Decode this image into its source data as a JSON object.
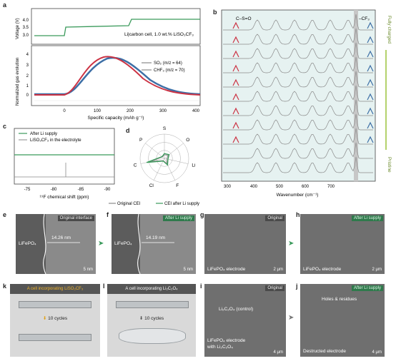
{
  "colors": {
    "green": "#3a9a5b",
    "blue": "#3d6fa6",
    "red": "#cc3344",
    "grey": "#8a8a8a",
    "ftir_fill": "#e6f2f1"
  },
  "panel_letters": {
    "a": "a",
    "b": "b",
    "c": "c",
    "d": "d",
    "e": "e",
    "f": "f",
    "g": "g",
    "h": "h",
    "i": "i",
    "j": "j",
    "k": "k",
    "l": "l"
  },
  "panel_a": {
    "cell_label": "Li|carbon cell, 1.0 wt.% LiSO₃CF₃",
    "ylabel_top": "Voltage (V)",
    "ylabel_bottom": "Normalized gas evolution",
    "xlabel": "Specific capacity (mAh g⁻¹)",
    "legend": [
      "SO₂ (m/z = 64)",
      "CHF₃ (m/z = 70)"
    ],
    "yticks_top": [
      "4.0",
      "3.5",
      "3.0"
    ],
    "yticks_bottom": [
      "4",
      "3",
      "2",
      "1",
      "0"
    ],
    "xticks": [
      "0",
      "100",
      "200",
      "300",
      "400"
    ]
  },
  "panel_b": {
    "xlabel": "Wavenumber (cm⁻¹)",
    "xticks": [
      "300",
      "400",
      "500",
      "600",
      "700"
    ],
    "peak_left": "C–S=O",
    "peak_right": "–CF₃",
    "state_top": "Fully charged",
    "state_bottom": "Pristine"
  },
  "panel_c": {
    "legend": [
      "After Li supply",
      "LiSO₃CF₃ in the electrolyte"
    ],
    "xlabel": "¹⁹F chemical shift (ppm)",
    "xticks": [
      "-75",
      "-80",
      "-85",
      "-90"
    ]
  },
  "panel_d": {
    "axes": [
      "S",
      "O",
      "Li",
      "F",
      "Cl",
      "C",
      "P"
    ],
    "legend": [
      "Original CEI",
      "CEI after Li supply"
    ]
  },
  "panel_e": {
    "tag": "Original interface",
    "material": "LiFePO₄",
    "width": "14.26 nm",
    "scale": "5 nm"
  },
  "panel_f": {
    "tag": "After Li supply",
    "material": "LiFePO₄",
    "width": "14.19 nm",
    "scale": "5 nm"
  },
  "panel_g": {
    "tag": "Original",
    "caption": "LiFePO₄ electrode",
    "scale": "2 μm"
  },
  "panel_h": {
    "tag": "After Li supply",
    "caption": "LiFePO₄ electrode",
    "scale": "2 μm"
  },
  "panel_i": {
    "tag": "Original",
    "inner_label": "Li₂C₂O₄ (control)",
    "caption_1": "LiFePO₄ electrode",
    "caption_2": "with Li₂C₂O₄",
    "scale": "4 μm"
  },
  "panel_j": {
    "tag": "After Li supply",
    "inner_label": "Holes & residues",
    "caption": "Destructed electrode",
    "scale": "4 μm"
  },
  "panel_k": {
    "banner": "A cell incorporating LiSO₃CF₃",
    "cycles": "10 cycles"
  },
  "panel_l": {
    "banner": "A cell incorporating Li₂C₂O₄",
    "cycles": "10 cycles"
  }
}
